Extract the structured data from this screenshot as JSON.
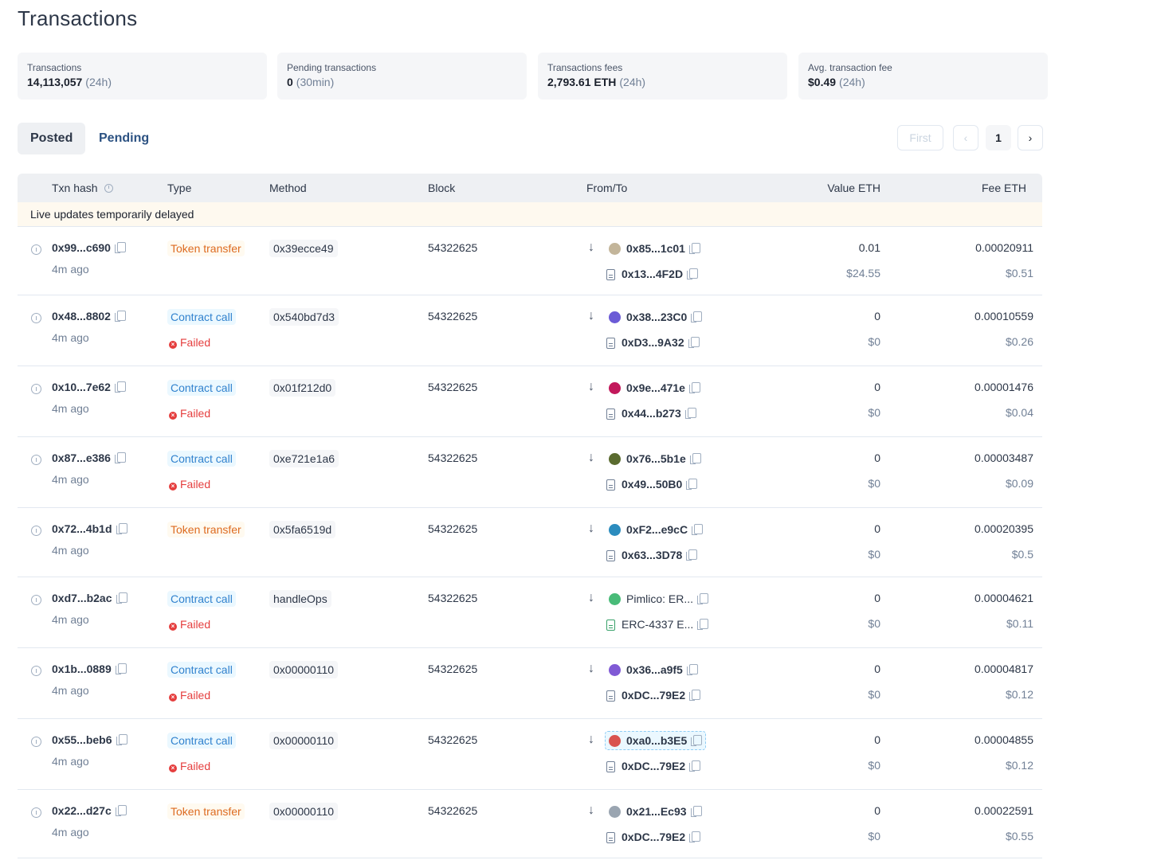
{
  "page": {
    "title": "Transactions"
  },
  "stats": [
    {
      "label": "Transactions",
      "value": "14,113,057",
      "sub": "(24h)"
    },
    {
      "label": "Pending transactions",
      "value": "0",
      "sub": "(30min)"
    },
    {
      "label": "Transactions fees",
      "value": "2,793.61 ETH",
      "sub": "(24h)"
    },
    {
      "label": "Avg. transaction fee",
      "value": "$0.49",
      "sub": "(24h)"
    }
  ],
  "tabs": {
    "posted": "Posted",
    "pending": "Pending"
  },
  "pagination": {
    "first": "First",
    "prev": "‹",
    "page": "1",
    "next": "›"
  },
  "table": {
    "headers": {
      "hash": "Txn hash",
      "type": "Type",
      "method": "Method",
      "block": "Block",
      "from_to": "From/To",
      "value": "Value ETH",
      "fee": "Fee ETH"
    },
    "notice": "Live updates temporarily delayed",
    "failed_label": "Failed",
    "rows": [
      {
        "hash": "0x99...c690",
        "time": "4m ago",
        "type": "Token transfer",
        "failed": false,
        "method": "0x39ecce49",
        "block": "54322625",
        "from": "0x85...1c01",
        "to": "0x13...4F2D",
        "value": "0.01",
        "value_usd": "$24.55",
        "fee": "0.00020911",
        "fee_usd": "$0.51",
        "avatar_color": "#c3b59a"
      },
      {
        "hash": "0x48...8802",
        "time": "4m ago",
        "type": "Contract call",
        "failed": true,
        "method": "0x540bd7d3",
        "block": "54322625",
        "from": "0x38...23C0",
        "to": "0xD3...9A32",
        "value": "0",
        "value_usd": "$0",
        "fee": "0.00010559",
        "fee_usd": "$0.26",
        "avatar_color": "#6b5bd6"
      },
      {
        "hash": "0x10...7e62",
        "time": "4m ago",
        "type": "Contract call",
        "failed": true,
        "method": "0x01f212d0",
        "block": "54322625",
        "from": "0x9e...471e",
        "to": "0x44...b273",
        "value": "0",
        "value_usd": "$0",
        "fee": "0.00001476",
        "fee_usd": "$0.04",
        "avatar_color": "#c2185b"
      },
      {
        "hash": "0x87...e386",
        "time": "4m ago",
        "type": "Contract call",
        "failed": true,
        "method": "0xe721e1a6",
        "block": "54322625",
        "from": "0x76...5b1e",
        "to": "0x49...50B0",
        "value": "0",
        "value_usd": "$0",
        "fee": "0.00003487",
        "fee_usd": "$0.09",
        "avatar_color": "#5a6b2f"
      },
      {
        "hash": "0x72...4b1d",
        "time": "4m ago",
        "type": "Token transfer",
        "failed": false,
        "method": "0x5fa6519d",
        "block": "54322625",
        "from": "0xF2...e9cC",
        "to": "0x63...3D78",
        "value": "0",
        "value_usd": "$0",
        "fee": "0.00020395",
        "fee_usd": "$0.5",
        "avatar_color": "#2b8cbe"
      },
      {
        "hash": "0xd7...b2ac",
        "time": "4m ago",
        "type": "Contract call",
        "failed": true,
        "method": "handleOps",
        "block": "54322625",
        "from": "Pimlico: ER...",
        "to": "ERC-4337 E...",
        "value": "0",
        "value_usd": "$0",
        "fee": "0.00004621",
        "fee_usd": "$0.11",
        "avatar_color": "#48bb78"
      },
      {
        "hash": "0x1b...0889",
        "time": "4m ago",
        "type": "Contract call",
        "failed": true,
        "method": "0x00000110",
        "block": "54322625",
        "from": "0x36...a9f5",
        "to": "0xDC...79E2",
        "value": "0",
        "value_usd": "$0",
        "fee": "0.00004817",
        "fee_usd": "$0.12",
        "avatar_color": "#805ad5"
      },
      {
        "hash": "0x55...beb6",
        "time": "4m ago",
        "type": "Contract call",
        "failed": true,
        "method": "0x00000110",
        "block": "54322625",
        "from": "0xa0...b3E5",
        "to": "0xDC...79E2",
        "value": "0",
        "value_usd": "$0",
        "fee": "0.00004855",
        "fee_usd": "$0.12",
        "avatar_color": "#d9534f"
      },
      {
        "hash": "0x22...d27c",
        "time": "4m ago",
        "type": "Token transfer",
        "failed": false,
        "method": "0x00000110",
        "block": "54322625",
        "from": "0x21...Ec93",
        "to": "0xDC...79E2",
        "value": "0",
        "value_usd": "$0",
        "fee": "0.00022591",
        "fee_usd": "$0.55",
        "avatar_color": "#9aa5b1"
      }
    ]
  }
}
